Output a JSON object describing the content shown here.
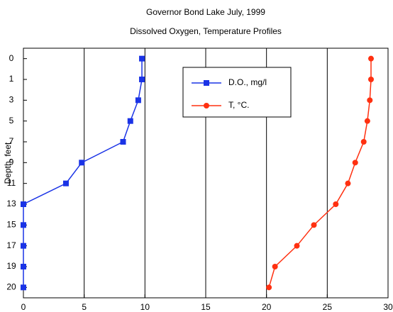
{
  "chart_data": {
    "type": "line",
    "orientation": "horizontal",
    "title": "Governor Bond Lake   July, 1999",
    "subtitle": "Dissolved Oxygen, Temperature Profiles",
    "y_label": "Depth, feet",
    "categories": [
      "0",
      "1",
      "3",
      "5",
      "7",
      "9",
      "11",
      "13",
      "15",
      "17",
      "19",
      "20"
    ],
    "series": [
      {
        "name": "D.O., mg/l",
        "color": "#1a33e6",
        "marker": "square",
        "values": [
          9.75,
          9.75,
          9.45,
          8.8,
          8.2,
          4.8,
          3.5,
          0,
          0,
          0,
          0,
          0
        ]
      },
      {
        "name": "T, °C.",
        "color": "#ff3010",
        "marker": "circle",
        "values": [
          28.6,
          28.6,
          28.5,
          28.3,
          28.0,
          27.3,
          26.7,
          25.7,
          23.9,
          22.5,
          20.7,
          20.2
        ]
      }
    ],
    "xlim": [
      0,
      30
    ],
    "xticks": [
      0,
      5,
      10,
      15,
      20,
      25,
      30
    ],
    "grid": true
  }
}
